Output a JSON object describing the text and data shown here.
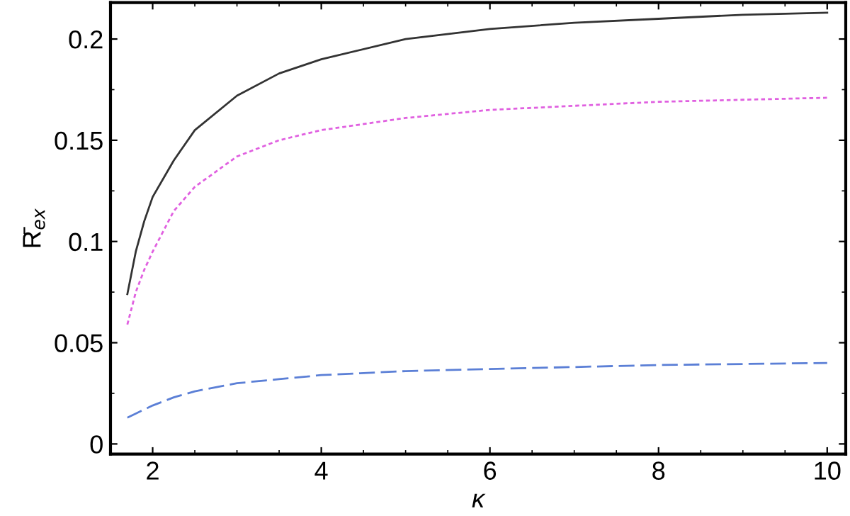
{
  "chart_data": {
    "type": "line",
    "xlabel": "κ",
    "ylabel": "R̄$_{ex}$",
    "xlim": [
      1.5,
      10.22
    ],
    "ylim": [
      -0.005,
      0.218
    ],
    "xticks": [
      2,
      4,
      6,
      8,
      10
    ],
    "yticks": [
      0,
      0.05,
      0.1,
      0.15,
      0.2
    ],
    "grid": false,
    "legend": false,
    "marker": "none",
    "x": [
      1.7,
      1.8,
      1.9,
      2.0,
      2.25,
      2.5,
      3,
      3.5,
      4,
      5,
      6,
      7,
      8,
      9,
      10
    ],
    "series": [
      {
        "color": "#333333",
        "line_style": "solid",
        "values": [
          0.074,
          0.095,
          0.11,
          0.122,
          0.14,
          0.155,
          0.172,
          0.183,
          0.19,
          0.2,
          0.205,
          0.208,
          0.21,
          0.212,
          0.213
        ]
      },
      {
        "color": "#e060e0",
        "line_style": "dotted",
        "values": [
          0.059,
          0.075,
          0.086,
          0.095,
          0.115,
          0.127,
          0.142,
          0.15,
          0.155,
          0.161,
          0.165,
          0.167,
          0.169,
          0.17,
          0.171
        ]
      },
      {
        "color": "#5b7fd6",
        "line_style": "dashed",
        "values": [
          0.013,
          0.015,
          0.017,
          0.019,
          0.023,
          0.026,
          0.03,
          0.032,
          0.034,
          0.036,
          0.037,
          0.038,
          0.039,
          0.0395,
          0.04
        ]
      }
    ]
  }
}
